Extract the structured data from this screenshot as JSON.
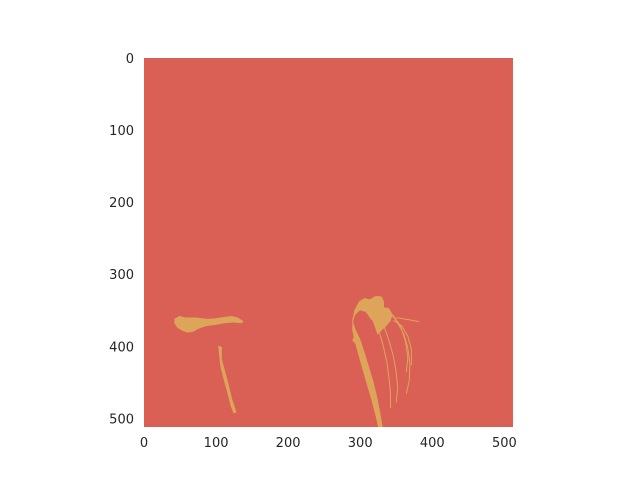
{
  "chart_data": {
    "type": "heatmap",
    "title": "",
    "xlabel": "",
    "ylabel": "",
    "xlim": [
      0,
      512
    ],
    "ylim": [
      512,
      0
    ],
    "grid": false,
    "x_ticks": [
      "0",
      "100",
      "200",
      "300",
      "400",
      "500"
    ],
    "y_ticks": [
      "0",
      "100",
      "200",
      "300",
      "400",
      "500"
    ],
    "x_tick_values": [
      0,
      100,
      200,
      300,
      400,
      500
    ],
    "y_tick_values": [
      0,
      100,
      200,
      300,
      400,
      500
    ],
    "background_class_color": "#da5f55",
    "foreground_class_color": "#dda55a",
    "regions": [
      {
        "points": [
          [
            42,
            362
          ],
          [
            49,
            358
          ],
          [
            58,
            360
          ],
          [
            72,
            360
          ],
          [
            88,
            362
          ],
          [
            100,
            361
          ],
          [
            113,
            359
          ],
          [
            122,
            358
          ],
          [
            130,
            360
          ],
          [
            138,
            365
          ],
          [
            136,
            368
          ],
          [
            124,
            367
          ],
          [
            112,
            368
          ],
          [
            100,
            370
          ],
          [
            86,
            372
          ],
          [
            75,
            376
          ],
          [
            68,
            380
          ],
          [
            60,
            381
          ],
          [
            52,
            378
          ],
          [
            46,
            374
          ],
          [
            42,
            368
          ]
        ]
      },
      {
        "points": [
          [
            103,
            399
          ],
          [
            108,
            401
          ],
          [
            108,
            418
          ],
          [
            113,
            436
          ],
          [
            118,
            455
          ],
          [
            122,
            472
          ],
          [
            127,
            487
          ],
          [
            128,
            492
          ],
          [
            124,
            493
          ],
          [
            120,
            482
          ],
          [
            116,
            466
          ],
          [
            111,
            448
          ],
          [
            106,
            428
          ],
          [
            104,
            410
          ]
        ]
      },
      {
        "points": [
          [
            313,
            335
          ],
          [
            322,
            330
          ],
          [
            330,
            331
          ],
          [
            333,
            338
          ],
          [
            333,
            346
          ],
          [
            340,
            347
          ],
          [
            345,
            356
          ],
          [
            342,
            365
          ],
          [
            336,
            372
          ],
          [
            330,
            378
          ],
          [
            324,
            384
          ],
          [
            320,
            372
          ],
          [
            316,
            362
          ],
          [
            307,
            352
          ],
          [
            300,
            350
          ],
          [
            293,
            356
          ],
          [
            290,
            366
          ],
          [
            294,
            378
          ],
          [
            300,
            390
          ],
          [
            306,
            408
          ],
          [
            312,
            428
          ],
          [
            318,
            448
          ],
          [
            323,
            468
          ],
          [
            327,
            488
          ],
          [
            330,
            505
          ],
          [
            331,
            512
          ],
          [
            325,
            512
          ],
          [
            321,
            495
          ],
          [
            316,
            476
          ],
          [
            310,
            456
          ],
          [
            304,
            435
          ],
          [
            298,
            414
          ],
          [
            293,
            396
          ],
          [
            289,
            378
          ],
          [
            289,
            364
          ],
          [
            292,
            350
          ],
          [
            298,
            338
          ],
          [
            306,
            333
          ]
        ]
      },
      {
        "points": [
          [
            312,
            351
          ],
          [
            320,
            349
          ],
          [
            324,
            356
          ],
          [
            322,
            364
          ],
          [
            315,
            363
          ],
          [
            311,
            357
          ]
        ]
      },
      {
        "points": [
          [
            291,
            387
          ],
          [
            297,
            385
          ],
          [
            299,
            393
          ],
          [
            293,
            396
          ],
          [
            289,
            392
          ]
        ]
      }
    ],
    "thin_lines": [
      [
        [
          338,
          350
        ],
        [
          350,
          364
        ],
        [
          360,
          382
        ],
        [
          366,
          402
        ],
        [
          369,
          424
        ],
        [
          368,
          448
        ],
        [
          364,
          466
        ]
      ],
      [
        [
          345,
          356
        ],
        [
          356,
          372
        ],
        [
          363,
          394
        ],
        [
          366,
          416
        ],
        [
          364,
          436
        ]
      ],
      [
        [
          333,
          372
        ],
        [
          340,
          392
        ],
        [
          346,
          414
        ],
        [
          350,
          436
        ],
        [
          352,
          458
        ],
        [
          350,
          478
        ]
      ],
      [
        [
          326,
          378
        ],
        [
          332,
          400
        ],
        [
          337,
          422
        ],
        [
          340,
          444
        ],
        [
          342,
          466
        ],
        [
          342,
          486
        ]
      ],
      [
        [
          350,
          360
        ],
        [
          360,
          362
        ],
        [
          372,
          364
        ],
        [
          382,
          366
        ]
      ],
      [
        [
          346,
          364
        ],
        [
          358,
          372
        ],
        [
          366,
          386
        ],
        [
          371,
          404
        ],
        [
          371,
          426
        ]
      ]
    ]
  }
}
